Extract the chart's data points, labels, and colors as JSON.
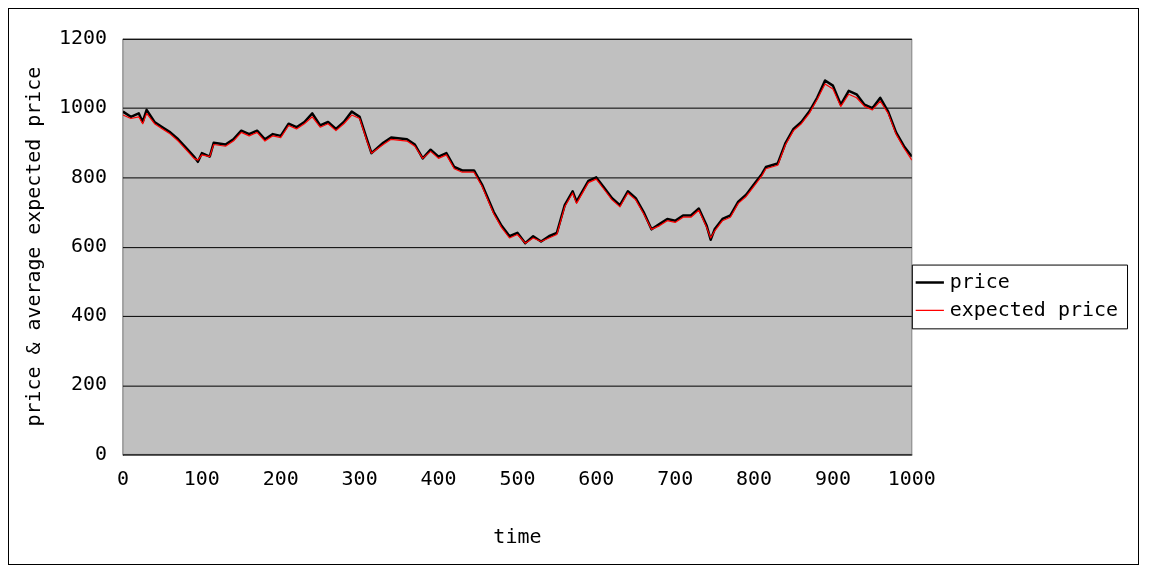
{
  "chart_data": {
    "type": "line",
    "xlabel": "time",
    "ylabel": "price & average expected price",
    "x": [
      0,
      10,
      20,
      25,
      30,
      40,
      50,
      60,
      70,
      80,
      90,
      95,
      100,
      110,
      115,
      130,
      140,
      150,
      160,
      170,
      180,
      190,
      200,
      210,
      220,
      230,
      240,
      250,
      260,
      270,
      280,
      290,
      300,
      310,
      315,
      330,
      340,
      360,
      370,
      380,
      390,
      400,
      410,
      420,
      430,
      445,
      455,
      470,
      480,
      490,
      500,
      510,
      520,
      530,
      540,
      550,
      560,
      570,
      575,
      590,
      600,
      610,
      620,
      630,
      640,
      650,
      660,
      670,
      680,
      690,
      700,
      710,
      720,
      730,
      740,
      745,
      750,
      760,
      770,
      780,
      790,
      800,
      810,
      815,
      830,
      840,
      850,
      860,
      870,
      880,
      890,
      900,
      910,
      920,
      930,
      940,
      950,
      960,
      970,
      980,
      990,
      1000
    ],
    "series": [
      {
        "name": "price",
        "color": "#000000",
        "values": [
          990,
          975,
          985,
          960,
          995,
          960,
          945,
          930,
          910,
          885,
          860,
          845,
          870,
          860,
          900,
          895,
          910,
          935,
          925,
          935,
          910,
          925,
          920,
          955,
          945,
          960,
          985,
          950,
          960,
          940,
          960,
          990,
          975,
          905,
          870,
          900,
          915,
          910,
          895,
          855,
          880,
          860,
          870,
          830,
          820,
          820,
          780,
          700,
          660,
          630,
          640,
          610,
          630,
          615,
          630,
          640,
          720,
          760,
          730,
          790,
          800,
          770,
          740,
          720,
          760,
          740,
          700,
          650,
          665,
          680,
          675,
          690,
          690,
          710,
          660,
          620,
          650,
          680,
          690,
          730,
          750,
          780,
          810,
          830,
          840,
          900,
          940,
          960,
          990,
          1030,
          1080,
          1065,
          1010,
          1050,
          1040,
          1010,
          1000,
          1030,
          990,
          930,
          890,
          860
        ]
      },
      {
        "name": "expected price",
        "color": "#ff0000",
        "values": [
          980,
          970,
          975,
          955,
          985,
          955,
          940,
          925,
          905,
          880,
          855,
          850,
          865,
          860,
          895,
          890,
          905,
          930,
          920,
          930,
          905,
          920,
          915,
          950,
          940,
          955,
          975,
          945,
          955,
          935,
          955,
          980,
          970,
          900,
          870,
          895,
          910,
          905,
          890,
          855,
          875,
          855,
          865,
          825,
          815,
          815,
          775,
          695,
          655,
          625,
          635,
          610,
          625,
          615,
          625,
          635,
          715,
          755,
          725,
          785,
          795,
          765,
          735,
          715,
          755,
          735,
          695,
          650,
          660,
          675,
          670,
          685,
          685,
          705,
          655,
          625,
          645,
          675,
          685,
          725,
          745,
          775,
          805,
          825,
          835,
          895,
          935,
          955,
          985,
          1025,
          1070,
          1055,
          1005,
          1040,
          1030,
          1005,
          995,
          1020,
          985,
          925,
          885,
          850
        ]
      }
    ],
    "xlim": [
      0,
      1000
    ],
    "xticks": [
      0,
      100,
      200,
      300,
      400,
      500,
      600,
      700,
      800,
      900,
      1000
    ],
    "ylim": [
      0,
      1200
    ],
    "yticks": [
      0,
      200,
      400,
      600,
      800,
      1000,
      1200
    ],
    "grid": "y",
    "legend": "right",
    "marker": "none",
    "line_style": "solid"
  }
}
